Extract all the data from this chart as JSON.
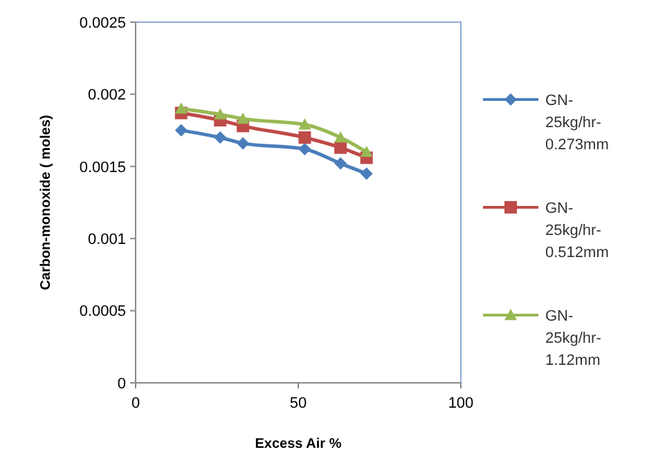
{
  "chart_data": {
    "type": "line",
    "xlabel": "Excess Air  %",
    "ylabel": "Carbon-monoxide ( moles)",
    "x": [
      14,
      26,
      33,
      52,
      63,
      71
    ],
    "xlim": [
      0,
      100
    ],
    "xticks": [
      0,
      50,
      100
    ],
    "ylim": [
      0,
      0.0025
    ],
    "yticks": [
      0,
      0.0005,
      0.001,
      0.0015,
      0.002,
      0.0025
    ],
    "grid": false,
    "legend": "right",
    "series": [
      {
        "name": "GN-25kg/hr-0.273mm",
        "color": "#4a7ebb",
        "marker": "diamond",
        "values": [
          0.00175,
          0.0017,
          0.00166,
          0.00162,
          0.00152,
          0.00145
        ]
      },
      {
        "name": "GN-25kg/hr-0.512mm",
        "color": "#be4b48",
        "marker": "square",
        "values": [
          0.00187,
          0.00182,
          0.00178,
          0.0017,
          0.00163,
          0.00156
        ]
      },
      {
        "name": "GN-25kg/hr-1.12mm",
        "color": "#98b954",
        "marker": "triangle",
        "values": [
          0.0019,
          0.00186,
          0.00183,
          0.00179,
          0.0017,
          0.0016
        ]
      }
    ]
  }
}
